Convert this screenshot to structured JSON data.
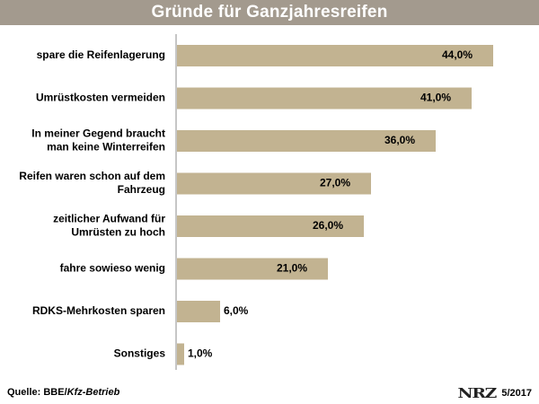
{
  "header": {
    "title": "Gründe für Ganzjahresreifen"
  },
  "chart_data": {
    "type": "bar",
    "orientation": "horizontal",
    "title": "Gründe für Ganzjahresreifen",
    "xlim": [
      0,
      50
    ],
    "grid": false,
    "bar_color": "#c2b391",
    "categories": [
      [
        "spare die Reifenlagerung"
      ],
      [
        "Umrüstkosten vermeiden"
      ],
      [
        "In meiner Gegend braucht",
        "man keine Winterreifen"
      ],
      [
        "Reifen waren schon auf dem",
        "Fahrzeug"
      ],
      [
        "zeitlicher Aufwand für",
        "Umrüsten zu hoch"
      ],
      [
        "fahre sowieso wenig"
      ],
      [
        "RDKS-Mehrkosten sparen"
      ],
      [
        "Sonstiges"
      ]
    ],
    "values": [
      44.0,
      41.0,
      36.0,
      27.0,
      26.0,
      21.0,
      6.0,
      1.0
    ],
    "value_labels": [
      "44,0%",
      "41,0%",
      "36,0%",
      "27,0%",
      "26,0%",
      "21,0%",
      "6,0%",
      "1,0%"
    ]
  },
  "footer": {
    "source_prefix": "Quelle: BBE/",
    "source_italic": "Kfz-Betrieb",
    "logo": "NRZ",
    "date": "5/2017"
  },
  "colors": {
    "title_bar": "#a39a8e",
    "bar": "#c2b391"
  }
}
